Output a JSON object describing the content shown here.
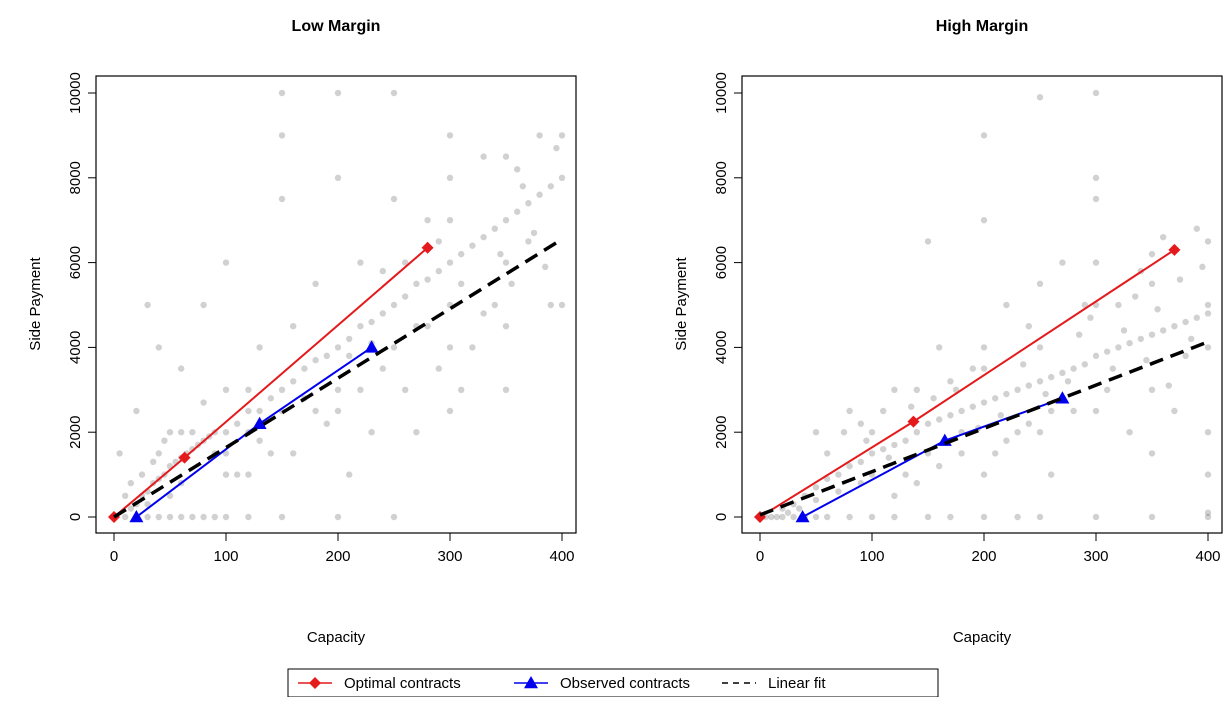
{
  "legend": {
    "entries": [
      {
        "label": "Optimal contracts",
        "color": "#e41a1c",
        "marker": "diamond",
        "dash": "solid"
      },
      {
        "label": "Observed contracts",
        "color": "#0000ee",
        "marker": "triangle",
        "dash": "solid"
      },
      {
        "label": "Linear fit",
        "color": "#000000",
        "marker": "none",
        "dash": "dashed"
      }
    ],
    "position": "bottom-center"
  },
  "chart_data": [
    {
      "type": "scatter",
      "title": "Low Margin",
      "xlabel": "Capacity",
      "ylabel": "Side Payment",
      "xlim": [
        0,
        400
      ],
      "ylim": [
        0,
        10000
      ],
      "xticks": [
        0,
        100,
        200,
        300,
        400
      ],
      "yticks": [
        0,
        2000,
        4000,
        6000,
        8000,
        10000
      ],
      "grid": false,
      "scatter_color": "#000000",
      "scatter_points": [
        [
          10,
          0
        ],
        [
          20,
          0
        ],
        [
          30,
          0
        ],
        [
          40,
          0
        ],
        [
          50,
          0
        ],
        [
          60,
          0
        ],
        [
          70,
          0
        ],
        [
          80,
          0
        ],
        [
          90,
          0
        ],
        [
          100,
          0
        ],
        [
          120,
          0
        ],
        [
          150,
          0
        ],
        [
          200,
          0
        ],
        [
          250,
          0
        ],
        [
          15,
          200
        ],
        [
          20,
          300
        ],
        [
          25,
          500
        ],
        [
          30,
          600
        ],
        [
          35,
          800
        ],
        [
          40,
          900
        ],
        [
          45,
          1000
        ],
        [
          50,
          1200
        ],
        [
          55,
          1300
        ],
        [
          60,
          1400
        ],
        [
          65,
          1500
        ],
        [
          70,
          1600
        ],
        [
          75,
          1700
        ],
        [
          80,
          1800
        ],
        [
          85,
          1900
        ],
        [
          90,
          2000
        ],
        [
          100,
          2000
        ],
        [
          100,
          1500
        ],
        [
          110,
          2200
        ],
        [
          120,
          2000
        ],
        [
          120,
          2500
        ],
        [
          130,
          2500
        ],
        [
          140,
          2800
        ],
        [
          150,
          3000
        ],
        [
          150,
          2500
        ],
        [
          160,
          3200
        ],
        [
          170,
          3500
        ],
        [
          180,
          3700
        ],
        [
          190,
          3800
        ],
        [
          200,
          4000
        ],
        [
          200,
          3000
        ],
        [
          200,
          2500
        ],
        [
          210,
          4200
        ],
        [
          220,
          4500
        ],
        [
          230,
          4600
        ],
        [
          240,
          4800
        ],
        [
          250,
          5000
        ],
        [
          250,
          4000
        ],
        [
          260,
          5200
        ],
        [
          270,
          5500
        ],
        [
          280,
          5600
        ],
        [
          290,
          5800
        ],
        [
          300,
          6000
        ],
        [
          300,
          5000
        ],
        [
          300,
          4000
        ],
        [
          310,
          6200
        ],
        [
          320,
          6400
        ],
        [
          330,
          6600
        ],
        [
          340,
          6800
        ],
        [
          350,
          7000
        ],
        [
          350,
          6000
        ],
        [
          360,
          7200
        ],
        [
          370,
          7400
        ],
        [
          380,
          7600
        ],
        [
          390,
          7800
        ],
        [
          400,
          8000
        ],
        [
          20,
          2500
        ],
        [
          30,
          5000
        ],
        [
          40,
          4000
        ],
        [
          50,
          2000
        ],
        [
          60,
          3500
        ],
        [
          80,
          5000
        ],
        [
          100,
          6000
        ],
        [
          120,
          1000
        ],
        [
          130,
          4000
        ],
        [
          150,
          10000
        ],
        [
          150,
          9000
        ],
        [
          150,
          7500
        ],
        [
          160,
          1500
        ],
        [
          180,
          5500
        ],
        [
          200,
          10000
        ],
        [
          200,
          8000
        ],
        [
          210,
          1000
        ],
        [
          220,
          6000
        ],
        [
          230,
          2000
        ],
        [
          250,
          10000
        ],
        [
          250,
          7500
        ],
        [
          260,
          3000
        ],
        [
          270,
          2000
        ],
        [
          280,
          4500
        ],
        [
          290,
          3500
        ],
        [
          300,
          9000
        ],
        [
          300,
          8000
        ],
        [
          300,
          7000
        ],
        [
          300,
          2500
        ],
        [
          310,
          3000
        ],
        [
          320,
          4000
        ],
        [
          330,
          8500
        ],
        [
          340,
          5000
        ],
        [
          350,
          8500
        ],
        [
          350,
          4500
        ],
        [
          350,
          3000
        ],
        [
          360,
          8200
        ],
        [
          370,
          6500
        ],
        [
          380,
          9000
        ],
        [
          390,
          5000
        ],
        [
          400,
          5000
        ],
        [
          400,
          9000
        ],
        [
          260,
          6000
        ],
        [
          240,
          3500
        ],
        [
          220,
          3000
        ],
        [
          180,
          2500
        ],
        [
          160,
          4500
        ],
        [
          140,
          1500
        ],
        [
          110,
          1000
        ],
        [
          90,
          1500
        ],
        [
          70,
          2000
        ],
        [
          60,
          800
        ],
        [
          50,
          500
        ],
        [
          40,
          1500
        ],
        [
          30,
          300
        ],
        [
          25,
          1000
        ],
        [
          15,
          800
        ],
        [
          10,
          500
        ],
        [
          5,
          1500
        ],
        [
          0,
          0
        ],
        [
          100,
          1000
        ],
        [
          130,
          1800
        ],
        [
          170,
          2800
        ],
        [
          190,
          2200
        ],
        [
          210,
          3800
        ],
        [
          230,
          4100
        ],
        [
          270,
          4500
        ],
        [
          290,
          6500
        ],
        [
          310,
          5500
        ],
        [
          330,
          4800
        ],
        [
          345,
          6200
        ],
        [
          355,
          5500
        ],
        [
          365,
          7800
        ],
        [
          375,
          6700
        ],
        [
          385,
          5900
        ],
        [
          395,
          8700
        ],
        [
          280,
          7000
        ],
        [
          240,
          5800
        ],
        [
          120,
          3000
        ],
        [
          100,
          3000
        ],
        [
          80,
          2700
        ],
        [
          60,
          2000
        ],
        [
          45,
          1800
        ],
        [
          35,
          1300
        ]
      ],
      "series": [
        {
          "name": "Optimal contracts",
          "color": "#e41a1c",
          "marker": "diamond",
          "dash": "solid",
          "x": [
            0,
            63,
            280
          ],
          "y": [
            0,
            1400,
            6350
          ]
        },
        {
          "name": "Observed contracts",
          "color": "#0000ee",
          "marker": "triangle",
          "dash": "solid",
          "x": [
            20,
            130,
            230
          ],
          "y": [
            0,
            2200,
            4000
          ]
        },
        {
          "name": "Linear fit",
          "color": "#000000",
          "marker": "none",
          "dash": "dashed",
          "x": [
            0,
            400
          ],
          "y": [
            0,
            6550
          ]
        }
      ]
    },
    {
      "type": "scatter",
      "title": "High Margin",
      "xlabel": "Capacity",
      "ylabel": "Side Payment",
      "xlim": [
        0,
        400
      ],
      "ylim": [
        0,
        10000
      ],
      "xticks": [
        0,
        100,
        200,
        300,
        400
      ],
      "yticks": [
        0,
        2000,
        4000,
        6000,
        8000,
        10000
      ],
      "grid": false,
      "scatter_color": "#000000",
      "scatter_points": [
        [
          10,
          0
        ],
        [
          20,
          0
        ],
        [
          30,
          0
        ],
        [
          40,
          0
        ],
        [
          50,
          0
        ],
        [
          60,
          0
        ],
        [
          80,
          0
        ],
        [
          100,
          0
        ],
        [
          120,
          0
        ],
        [
          150,
          0
        ],
        [
          170,
          0
        ],
        [
          200,
          0
        ],
        [
          230,
          0
        ],
        [
          250,
          0
        ],
        [
          300,
          0
        ],
        [
          350,
          0
        ],
        [
          400,
          0
        ],
        [
          20,
          200
        ],
        [
          30,
          300
        ],
        [
          40,
          500
        ],
        [
          50,
          700
        ],
        [
          60,
          900
        ],
        [
          70,
          1000
        ],
        [
          80,
          1200
        ],
        [
          90,
          1300
        ],
        [
          100,
          1500
        ],
        [
          100,
          2000
        ],
        [
          100,
          1000
        ],
        [
          110,
          1600
        ],
        [
          120,
          1700
        ],
        [
          130,
          1800
        ],
        [
          140,
          2000
        ],
        [
          150,
          2200
        ],
        [
          150,
          1500
        ],
        [
          160,
          2300
        ],
        [
          170,
          2400
        ],
        [
          180,
          2500
        ],
        [
          190,
          2600
        ],
        [
          200,
          2700
        ],
        [
          200,
          3500
        ],
        [
          200,
          4000
        ],
        [
          200,
          1000
        ],
        [
          210,
          2800
        ],
        [
          220,
          2900
        ],
        [
          230,
          3000
        ],
        [
          240,
          3100
        ],
        [
          250,
          3200
        ],
        [
          250,
          4000
        ],
        [
          250,
          2000
        ],
        [
          260,
          3300
        ],
        [
          270,
          3400
        ],
        [
          280,
          3500
        ],
        [
          290,
          3600
        ],
        [
          300,
          3800
        ],
        [
          300,
          5000
        ],
        [
          300,
          6000
        ],
        [
          300,
          2500
        ],
        [
          310,
          3900
        ],
        [
          320,
          4000
        ],
        [
          330,
          4100
        ],
        [
          340,
          4200
        ],
        [
          350,
          4300
        ],
        [
          350,
          5500
        ],
        [
          350,
          3000
        ],
        [
          360,
          4400
        ],
        [
          370,
          4500
        ],
        [
          380,
          4600
        ],
        [
          390,
          4700
        ],
        [
          400,
          4800
        ],
        [
          400,
          4000
        ],
        [
          400,
          1000
        ],
        [
          50,
          2000
        ],
        [
          60,
          1500
        ],
        [
          80,
          2500
        ],
        [
          90,
          2200
        ],
        [
          110,
          2500
        ],
        [
          120,
          3000
        ],
        [
          130,
          1000
        ],
        [
          140,
          3000
        ],
        [
          150,
          6500
        ],
        [
          160,
          4000
        ],
        [
          170,
          3200
        ],
        [
          180,
          1500
        ],
        [
          190,
          3500
        ],
        [
          200,
          9000
        ],
        [
          200,
          7000
        ],
        [
          210,
          1500
        ],
        [
          220,
          5000
        ],
        [
          230,
          2000
        ],
        [
          240,
          4500
        ],
        [
          250,
          9900
        ],
        [
          250,
          5500
        ],
        [
          260,
          1000
        ],
        [
          270,
          6000
        ],
        [
          280,
          2500
        ],
        [
          290,
          5000
        ],
        [
          300,
          10000
        ],
        [
          300,
          7500
        ],
        [
          300,
          8000
        ],
        [
          310,
          3000
        ],
        [
          320,
          5000
        ],
        [
          330,
          2000
        ],
        [
          340,
          5800
        ],
        [
          350,
          6200
        ],
        [
          350,
          1500
        ],
        [
          360,
          6600
        ],
        [
          370,
          2500
        ],
        [
          380,
          3800
        ],
        [
          390,
          6800
        ],
        [
          400,
          5000
        ],
        [
          400,
          6500
        ],
        [
          400,
          2000
        ],
        [
          400,
          100
        ],
        [
          260,
          2500
        ],
        [
          240,
          2200
        ],
        [
          220,
          1800
        ],
        [
          180,
          2000
        ],
        [
          160,
          1200
        ],
        [
          140,
          800
        ],
        [
          120,
          500
        ],
        [
          90,
          800
        ],
        [
          70,
          600
        ],
        [
          50,
          400
        ],
        [
          35,
          200
        ],
        [
          25,
          100
        ],
        [
          15,
          0
        ],
        [
          5,
          0
        ],
        [
          0,
          0
        ],
        [
          75,
          2000
        ],
        [
          95,
          1800
        ],
        [
          115,
          1400
        ],
        [
          135,
          2600
        ],
        [
          155,
          2800
        ],
        [
          175,
          3000
        ],
        [
          195,
          2100
        ],
        [
          215,
          2400
        ],
        [
          235,
          3600
        ],
        [
          255,
          2900
        ],
        [
          275,
          3200
        ],
        [
          285,
          4300
        ],
        [
          295,
          4700
        ],
        [
          315,
          3500
        ],
        [
          325,
          4400
        ],
        [
          335,
          5200
        ],
        [
          345,
          3700
        ],
        [
          355,
          4900
        ],
        [
          365,
          3100
        ],
        [
          375,
          5600
        ],
        [
          385,
          4200
        ],
        [
          395,
          5900
        ]
      ],
      "series": [
        {
          "name": "Optimal contracts",
          "color": "#e41a1c",
          "marker": "diamond",
          "dash": "solid",
          "x": [
            0,
            137,
            370
          ],
          "y": [
            0,
            2250,
            6300
          ]
        },
        {
          "name": "Observed contracts",
          "color": "#0000ee",
          "marker": "triangle",
          "dash": "solid",
          "x": [
            38,
            165,
            270
          ],
          "y": [
            0,
            1800,
            2800
          ]
        },
        {
          "name": "Linear fit",
          "color": "#000000",
          "marker": "none",
          "dash": "dashed",
          "x": [
            0,
            400
          ],
          "y": [
            50,
            4130
          ]
        }
      ]
    }
  ]
}
